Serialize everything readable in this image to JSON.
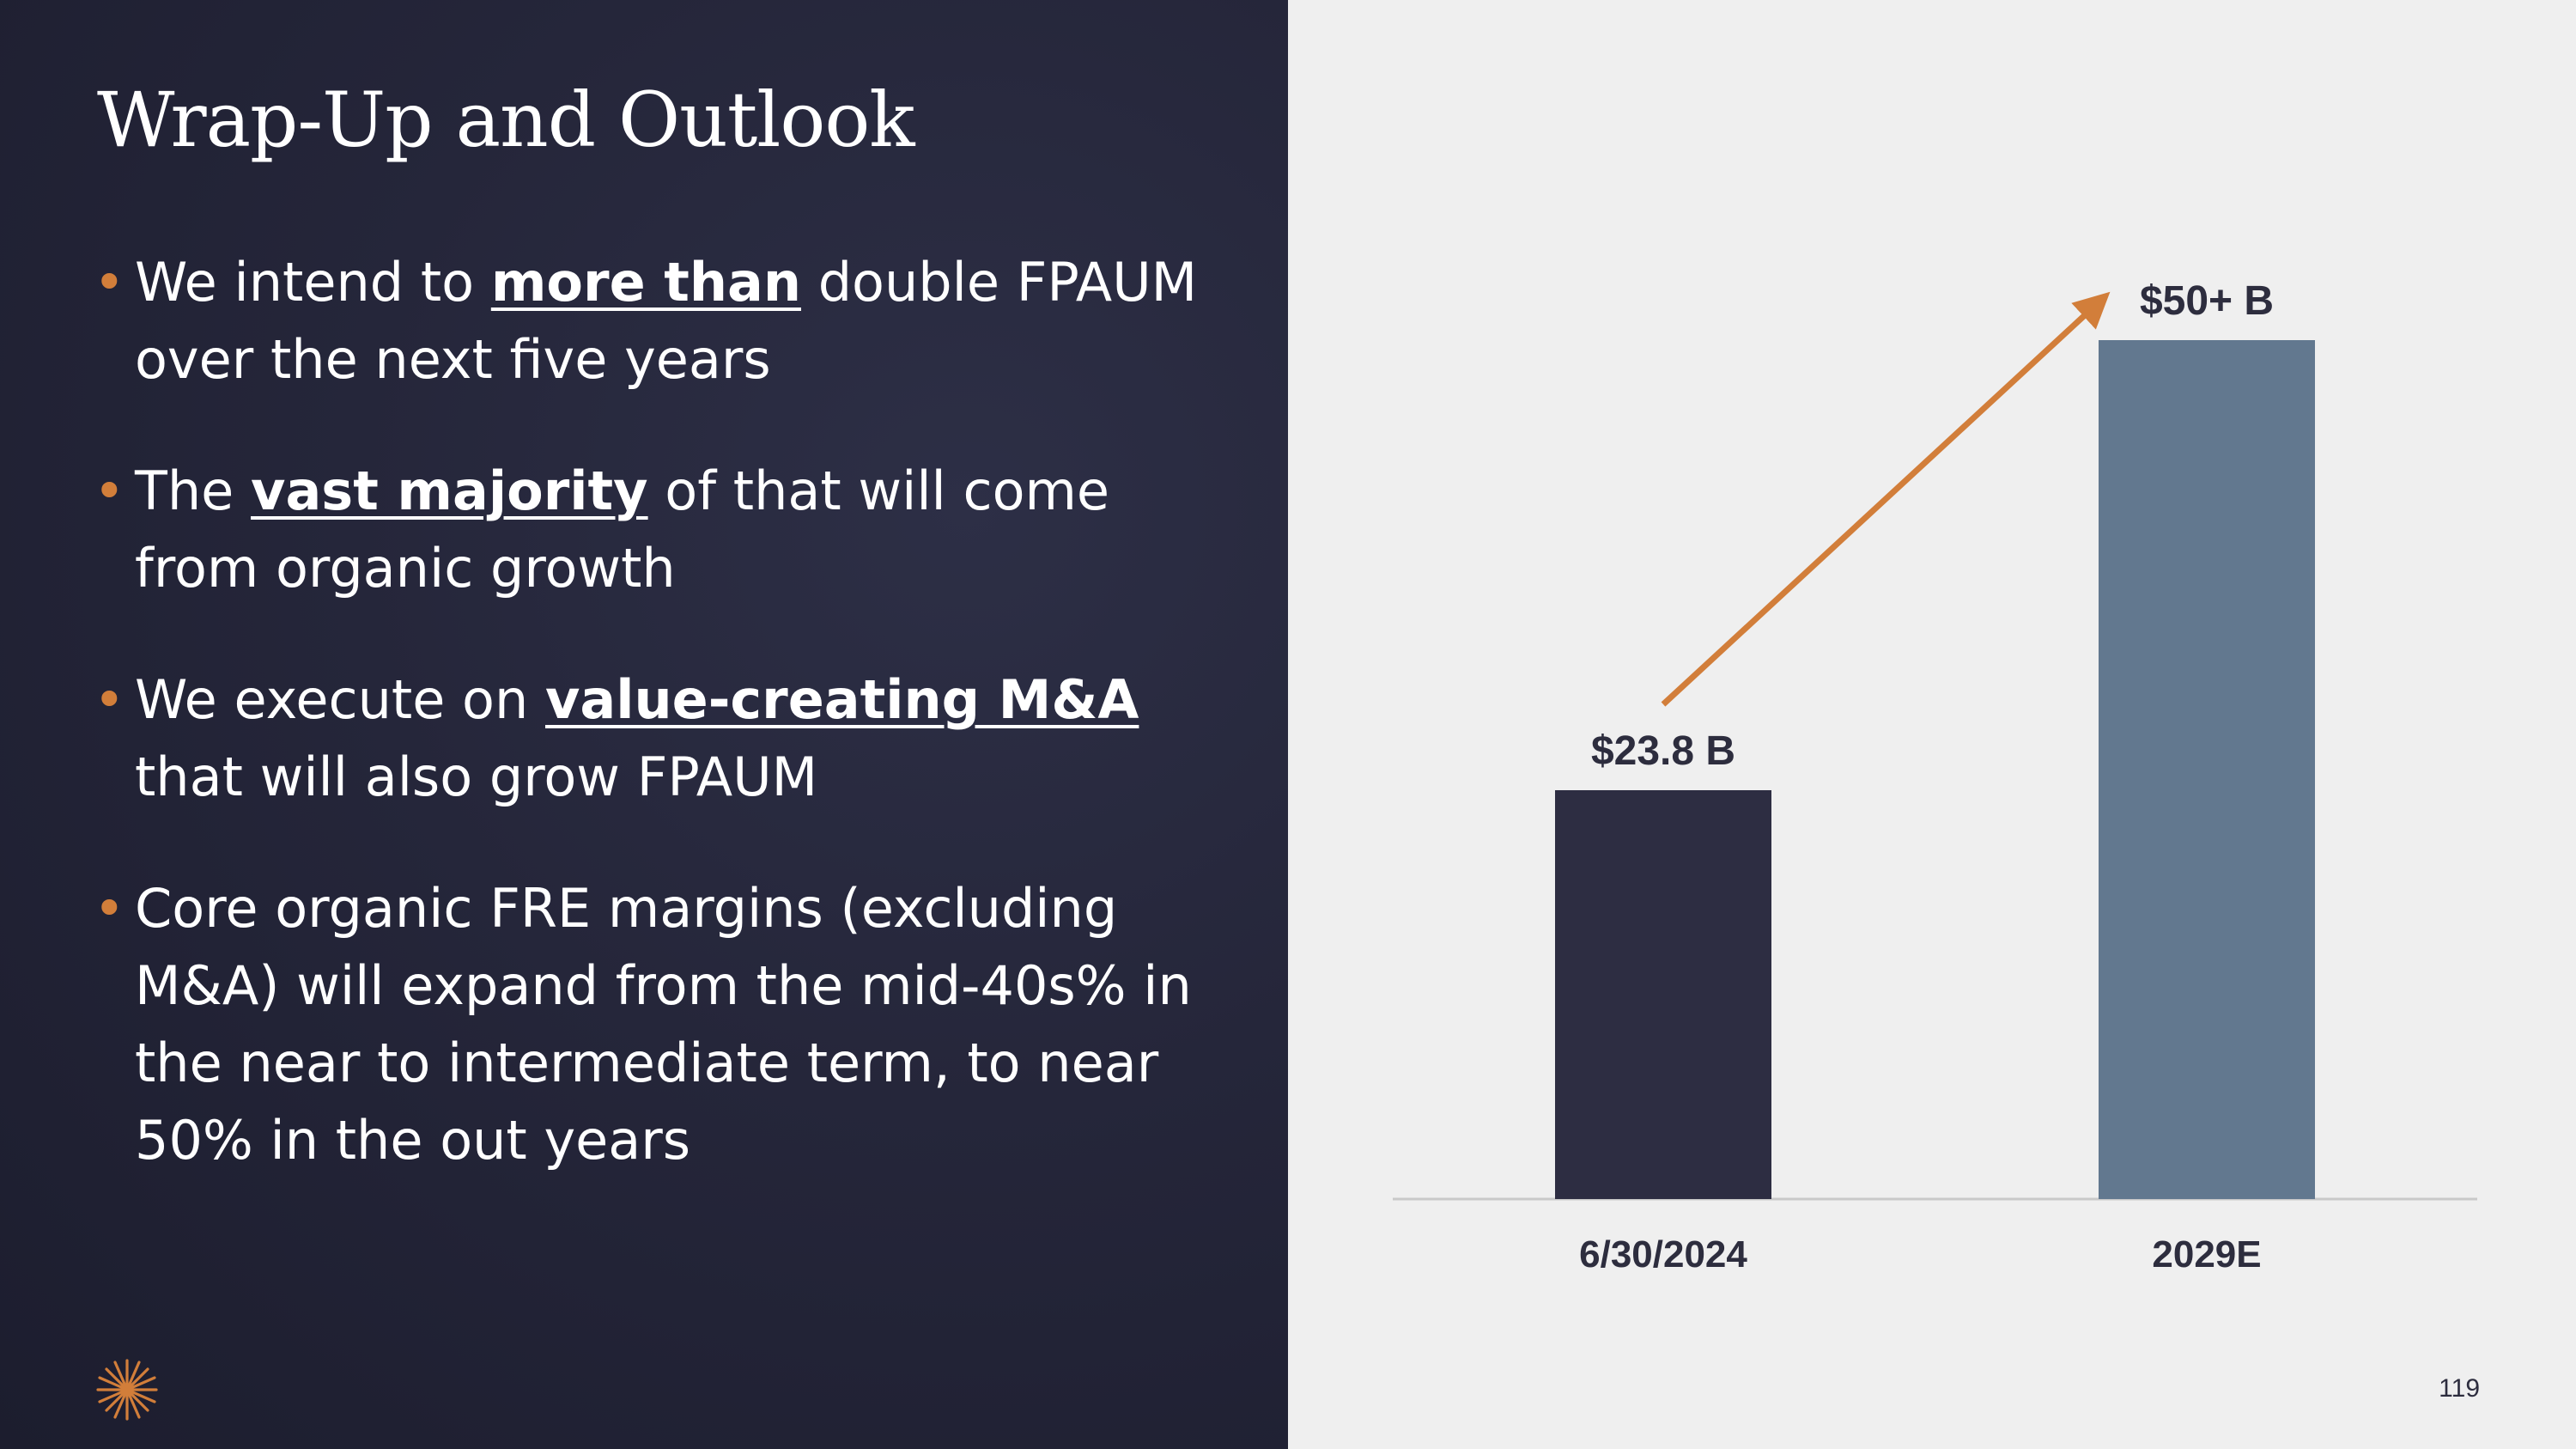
{
  "slide": {
    "title": "Wrap-Up and Outlook",
    "page_number": "119",
    "logo_icon": "starburst-logo-icon"
  },
  "bullets": [
    {
      "pre": "We intend to ",
      "emph": "more than",
      "post": " double FPAUM over the next five years"
    },
    {
      "pre": "The ",
      "emph": "vast majority",
      "post": " of that will come from organic growth"
    },
    {
      "pre": "We execute on ",
      "emph": "value-creating M&A",
      "post": " that will also grow FPAUM"
    },
    {
      "pre": "Core organic FRE margins (excluding M&A) will expand from the mid-40s% in the near to intermediate term, to near 50% in the out years",
      "emph": "",
      "post": ""
    }
  ],
  "colors": {
    "left_bg": "#25263a",
    "accent": "#d27e3a",
    "bar_dark": "#2d2d42",
    "bar_light": "#62788f",
    "text_dark": "#2d2d3e"
  },
  "chart_data": {
    "type": "bar",
    "title": "",
    "xlabel": "",
    "ylabel": "",
    "categories": [
      "6/30/2024",
      "2029E"
    ],
    "values": [
      23.8,
      50
    ],
    "data_labels": [
      "$23.8 B",
      "$50+ B"
    ],
    "unit": "$B",
    "ylim": [
      0,
      52.3
    ],
    "grid": false,
    "legend": "none",
    "annotations": [
      {
        "type": "arrow",
        "from": "6/30/2024",
        "to": "2029E",
        "meaning": "growth"
      }
    ]
  }
}
